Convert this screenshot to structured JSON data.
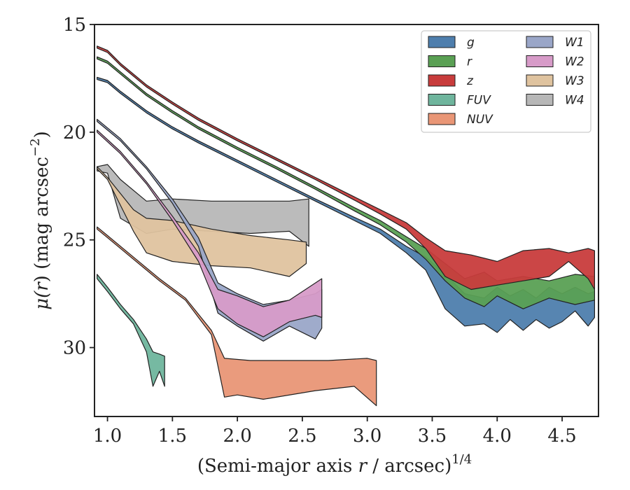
{
  "chart_data": {
    "type": "area",
    "xlabel_main": "(Semi-major axis ",
    "xlabel_var": "r",
    "xlabel_unit": " / arcsec)",
    "xlabel_exp": "1/4",
    "ylabel_main": "μ(",
    "ylabel_var": "r",
    "ylabel_unit": ") (mag arcsec",
    "ylabel_exp": "−2",
    "ylabel_close": ")",
    "xlim": [
      0.9,
      4.78
    ],
    "ylim": [
      33.2,
      15.0
    ],
    "y_inverted": true,
    "xticks": [
      1.0,
      1.5,
      2.0,
      2.5,
      3.0,
      3.5,
      4.0,
      4.5
    ],
    "xtick_labels": [
      "1.0",
      "1.5",
      "2.0",
      "2.5",
      "3.0",
      "3.5",
      "4.0",
      "4.5"
    ],
    "yticks": [
      15,
      20,
      25,
      30
    ],
    "ytick_labels": [
      "15",
      "20",
      "25",
      "30"
    ],
    "grid": false,
    "legend_placement": "top-right",
    "series": [
      {
        "name": "g",
        "color": "#4e7ead",
        "upper": [
          [
            0.92,
            17.45
          ],
          [
            1.0,
            17.6
          ],
          [
            1.1,
            18.1
          ],
          [
            1.3,
            19.0
          ],
          [
            1.5,
            19.75
          ],
          [
            1.7,
            20.4
          ],
          [
            2.0,
            21.3
          ],
          [
            2.3,
            22.2
          ],
          [
            2.6,
            23.1
          ],
          [
            2.9,
            23.95
          ],
          [
            3.1,
            24.5
          ],
          [
            3.3,
            25.3
          ],
          [
            3.45,
            25.8
          ],
          [
            3.6,
            26.6
          ],
          [
            3.75,
            27.5
          ],
          [
            3.9,
            27.7
          ],
          [
            4.0,
            27.2
          ],
          [
            4.1,
            27.6
          ],
          [
            4.2,
            27.3
          ],
          [
            4.3,
            27.7
          ],
          [
            4.4,
            27.2
          ],
          [
            4.5,
            27.5
          ],
          [
            4.6,
            27.2
          ],
          [
            4.7,
            27.5
          ],
          [
            4.75,
            27.4
          ]
        ],
        "lower": [
          [
            0.92,
            17.55
          ],
          [
            1.0,
            17.7
          ],
          [
            1.1,
            18.2
          ],
          [
            1.3,
            19.1
          ],
          [
            1.5,
            19.85
          ],
          [
            1.7,
            20.5
          ],
          [
            2.0,
            21.4
          ],
          [
            2.3,
            22.3
          ],
          [
            2.6,
            23.2
          ],
          [
            2.9,
            24.1
          ],
          [
            3.1,
            24.7
          ],
          [
            3.3,
            25.6
          ],
          [
            3.45,
            26.4
          ],
          [
            3.6,
            28.2
          ],
          [
            3.75,
            29.0
          ],
          [
            3.9,
            28.9
          ],
          [
            4.0,
            29.3
          ],
          [
            4.1,
            28.7
          ],
          [
            4.2,
            29.2
          ],
          [
            4.3,
            28.7
          ],
          [
            4.4,
            29.1
          ],
          [
            4.5,
            28.8
          ],
          [
            4.6,
            28.3
          ],
          [
            4.7,
            29.0
          ],
          [
            4.75,
            28.6
          ]
        ]
      },
      {
        "name": "r",
        "color": "#5aa054",
        "upper": [
          [
            0.92,
            16.5
          ],
          [
            1.0,
            16.7
          ],
          [
            1.1,
            17.2
          ],
          [
            1.3,
            18.2
          ],
          [
            1.5,
            19.0
          ],
          [
            1.7,
            19.75
          ],
          [
            2.0,
            20.7
          ],
          [
            2.3,
            21.6
          ],
          [
            2.6,
            22.55
          ],
          [
            2.9,
            23.5
          ],
          [
            3.1,
            24.1
          ],
          [
            3.3,
            24.85
          ],
          [
            3.45,
            25.4
          ],
          [
            3.6,
            26.1
          ],
          [
            3.75,
            26.8
          ],
          [
            3.9,
            26.5
          ],
          [
            4.0,
            26.9
          ],
          [
            4.2,
            26.7
          ],
          [
            4.4,
            26.9
          ],
          [
            4.6,
            26.6
          ],
          [
            4.75,
            26.7
          ]
        ],
        "lower": [
          [
            0.92,
            16.6
          ],
          [
            1.0,
            16.8
          ],
          [
            1.1,
            17.3
          ],
          [
            1.3,
            18.3
          ],
          [
            1.5,
            19.1
          ],
          [
            1.7,
            19.85
          ],
          [
            2.0,
            20.8
          ],
          [
            2.3,
            21.7
          ],
          [
            2.6,
            22.65
          ],
          [
            2.9,
            23.65
          ],
          [
            3.1,
            24.3
          ],
          [
            3.3,
            25.1
          ],
          [
            3.45,
            25.9
          ],
          [
            3.6,
            26.9
          ],
          [
            3.75,
            27.7
          ],
          [
            3.9,
            28.1
          ],
          [
            4.0,
            27.6
          ],
          [
            4.2,
            28.2
          ],
          [
            4.4,
            27.7
          ],
          [
            4.6,
            28.0
          ],
          [
            4.75,
            27.8
          ]
        ]
      },
      {
        "name": "z",
        "color": "#c83c3c",
        "upper": [
          [
            0.92,
            16.0
          ],
          [
            1.0,
            16.2
          ],
          [
            1.1,
            16.8
          ],
          [
            1.3,
            17.8
          ],
          [
            1.5,
            18.6
          ],
          [
            1.7,
            19.35
          ],
          [
            2.0,
            20.3
          ],
          [
            2.3,
            21.2
          ],
          [
            2.6,
            22.1
          ],
          [
            2.9,
            23.0
          ],
          [
            3.1,
            23.6
          ],
          [
            3.3,
            24.2
          ],
          [
            3.45,
            24.9
          ],
          [
            3.6,
            25.5
          ],
          [
            3.8,
            25.7
          ],
          [
            4.0,
            26.0
          ],
          [
            4.2,
            25.5
          ],
          [
            4.4,
            25.4
          ],
          [
            4.55,
            25.6
          ],
          [
            4.7,
            25.4
          ],
          [
            4.75,
            25.5
          ]
        ],
        "lower": [
          [
            0.92,
            16.1
          ],
          [
            1.0,
            16.3
          ],
          [
            1.1,
            16.9
          ],
          [
            1.3,
            17.9
          ],
          [
            1.5,
            18.7
          ],
          [
            1.7,
            19.45
          ],
          [
            2.0,
            20.4
          ],
          [
            2.3,
            21.3
          ],
          [
            2.6,
            22.2
          ],
          [
            2.9,
            23.15
          ],
          [
            3.1,
            23.8
          ],
          [
            3.3,
            24.5
          ],
          [
            3.45,
            25.4
          ],
          [
            3.6,
            26.7
          ],
          [
            3.8,
            27.3
          ],
          [
            4.0,
            27.1
          ],
          [
            4.2,
            26.9
          ],
          [
            4.4,
            26.7
          ],
          [
            4.55,
            26.0
          ],
          [
            4.7,
            26.8
          ],
          [
            4.75,
            27.3
          ]
        ]
      },
      {
        "name": "FUV",
        "color": "#6fb59d",
        "upper": [
          [
            0.92,
            26.6
          ],
          [
            1.0,
            27.2
          ],
          [
            1.1,
            28.0
          ],
          [
            1.2,
            28.7
          ],
          [
            1.3,
            29.6
          ],
          [
            1.35,
            30.2
          ],
          [
            1.4,
            30.3
          ],
          [
            1.44,
            30.4
          ]
        ],
        "lower": [
          [
            0.92,
            26.8
          ],
          [
            1.0,
            27.4
          ],
          [
            1.1,
            28.2
          ],
          [
            1.2,
            28.9
          ],
          [
            1.3,
            30.2
          ],
          [
            1.35,
            31.8
          ],
          [
            1.4,
            31.1
          ],
          [
            1.44,
            31.8
          ]
        ]
      },
      {
        "name": "NUV",
        "color": "#e99676",
        "upper": [
          [
            0.92,
            24.4
          ],
          [
            1.0,
            24.8
          ],
          [
            1.2,
            25.8
          ],
          [
            1.4,
            26.8
          ],
          [
            1.6,
            27.7
          ],
          [
            1.8,
            29.2
          ],
          [
            1.9,
            30.5
          ],
          [
            2.1,
            30.6
          ],
          [
            2.4,
            30.6
          ],
          [
            2.7,
            30.6
          ],
          [
            3.0,
            30.5
          ],
          [
            3.07,
            30.6
          ]
        ],
        "lower": [
          [
            0.92,
            24.5
          ],
          [
            1.0,
            24.9
          ],
          [
            1.2,
            25.9
          ],
          [
            1.4,
            26.9
          ],
          [
            1.6,
            27.8
          ],
          [
            1.8,
            29.4
          ],
          [
            1.9,
            32.3
          ],
          [
            2.0,
            32.2
          ],
          [
            2.2,
            32.4
          ],
          [
            2.6,
            32.0
          ],
          [
            2.9,
            31.8
          ],
          [
            3.07,
            32.7
          ]
        ]
      },
      {
        "name": "W1",
        "color": "#9aa6c8",
        "upper": [
          [
            0.92,
            19.4
          ],
          [
            1.1,
            20.3
          ],
          [
            1.3,
            21.6
          ],
          [
            1.5,
            23.1
          ],
          [
            1.7,
            24.9
          ],
          [
            1.85,
            27.0
          ],
          [
            2.0,
            27.5
          ],
          [
            2.2,
            28.0
          ],
          [
            2.4,
            27.8
          ],
          [
            2.6,
            27.5
          ],
          [
            2.65,
            27.3
          ]
        ],
        "lower": [
          [
            0.92,
            19.5
          ],
          [
            1.1,
            20.4
          ],
          [
            1.3,
            21.7
          ],
          [
            1.5,
            23.3
          ],
          [
            1.7,
            25.3
          ],
          [
            1.85,
            28.4
          ],
          [
            2.0,
            29.0
          ],
          [
            2.2,
            29.7
          ],
          [
            2.4,
            29.0
          ],
          [
            2.6,
            29.6
          ],
          [
            2.65,
            29.1
          ]
        ]
      },
      {
        "name": "W2",
        "color": "#d79bc8",
        "upper": [
          [
            0.92,
            19.9
          ],
          [
            1.1,
            20.9
          ],
          [
            1.3,
            22.3
          ],
          [
            1.5,
            23.9
          ],
          [
            1.7,
            25.6
          ],
          [
            1.85,
            27.3
          ],
          [
            2.0,
            27.6
          ],
          [
            2.2,
            28.1
          ],
          [
            2.4,
            27.8
          ],
          [
            2.6,
            27.0
          ],
          [
            2.65,
            26.8
          ]
        ],
        "lower": [
          [
            0.92,
            20.0
          ],
          [
            1.1,
            21.0
          ],
          [
            1.3,
            22.4
          ],
          [
            1.5,
            24.1
          ],
          [
            1.7,
            26.0
          ],
          [
            1.85,
            28.2
          ],
          [
            2.0,
            28.9
          ],
          [
            2.2,
            29.5
          ],
          [
            2.4,
            28.8
          ],
          [
            2.6,
            28.5
          ],
          [
            2.65,
            28.6
          ]
        ]
      },
      {
        "name": "W3",
        "color": "#dfc39f",
        "upper": [
          [
            0.92,
            21.6
          ],
          [
            1.0,
            22.1
          ],
          [
            1.2,
            23.6
          ],
          [
            1.3,
            24.0
          ],
          [
            1.5,
            24.1
          ],
          [
            1.8,
            24.5
          ],
          [
            2.1,
            24.8
          ],
          [
            2.4,
            25.0
          ],
          [
            2.53,
            25.1
          ]
        ],
        "lower": [
          [
            0.92,
            21.7
          ],
          [
            1.0,
            22.2
          ],
          [
            1.2,
            24.6
          ],
          [
            1.3,
            25.6
          ],
          [
            1.5,
            26.0
          ],
          [
            1.8,
            26.2
          ],
          [
            2.1,
            26.3
          ],
          [
            2.4,
            26.7
          ],
          [
            2.53,
            26.1
          ]
        ]
      },
      {
        "name": "W4",
        "color": "#b7b7b7",
        "upper": [
          [
            0.92,
            21.6
          ],
          [
            1.0,
            21.5
          ],
          [
            1.1,
            22.2
          ],
          [
            1.3,
            23.2
          ],
          [
            1.5,
            23.1
          ],
          [
            1.8,
            23.2
          ],
          [
            2.1,
            23.2
          ],
          [
            2.4,
            23.2
          ],
          [
            2.55,
            23.1
          ]
        ],
        "lower": [
          [
            0.92,
            21.8
          ],
          [
            1.0,
            21.9
          ],
          [
            1.1,
            24.0
          ],
          [
            1.3,
            24.7
          ],
          [
            1.5,
            24.5
          ],
          [
            1.8,
            24.6
          ],
          [
            2.1,
            24.7
          ],
          [
            2.4,
            24.6
          ],
          [
            2.55,
            25.3
          ]
        ]
      }
    ]
  }
}
